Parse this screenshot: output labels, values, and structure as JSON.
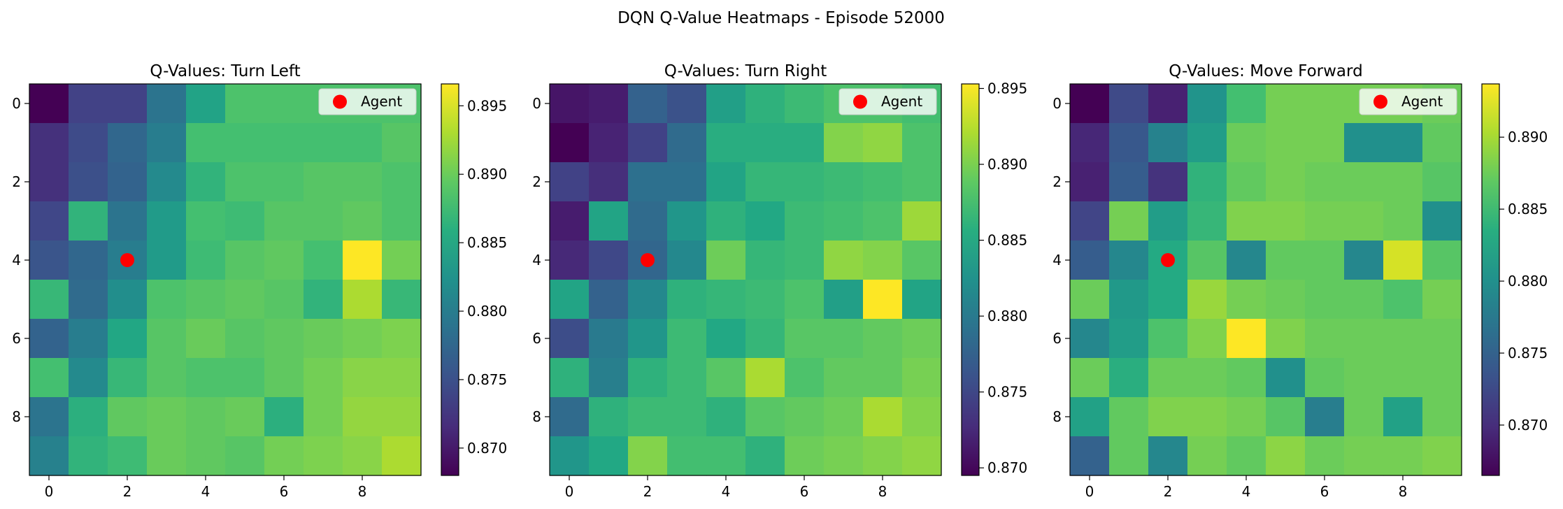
{
  "suptitle": "DQN Q-Value Heatmaps - Episode 52000",
  "colormap": "viridis",
  "agent_color": "#ff0000",
  "legend_label": "Agent",
  "chart_data": [
    {
      "type": "heatmap",
      "title": "Q-Values: Turn Left",
      "x_ticks": [
        "0",
        "2",
        "4",
        "6",
        "8"
      ],
      "y_ticks": [
        "0",
        "2",
        "4",
        "6",
        "8"
      ],
      "colorbar_ticks": [
        "0.870",
        "0.875",
        "0.880",
        "0.885",
        "0.890",
        "0.895"
      ],
      "vmin": 0.868,
      "vmax": 0.8966,
      "agent": {
        "x": 2,
        "y": 4
      },
      "values": [
        [
          0.868,
          0.8735,
          0.8735,
          0.879,
          0.8845,
          0.8885,
          0.8885,
          0.8885,
          0.8885,
          0.8885
        ],
        [
          0.872,
          0.8745,
          0.8775,
          0.88,
          0.888,
          0.888,
          0.888,
          0.888,
          0.888,
          0.889
        ],
        [
          0.872,
          0.875,
          0.877,
          0.8815,
          0.8865,
          0.8885,
          0.8885,
          0.889,
          0.889,
          0.8885
        ],
        [
          0.874,
          0.8865,
          0.879,
          0.8835,
          0.888,
          0.8875,
          0.889,
          0.889,
          0.8895,
          0.8885
        ],
        [
          0.8755,
          0.8775,
          0.88,
          0.8835,
          0.8875,
          0.889,
          0.8895,
          0.888,
          0.8966,
          0.8905
        ],
        [
          0.887,
          0.878,
          0.882,
          0.8885,
          0.889,
          0.8895,
          0.889,
          0.8865,
          0.893,
          0.887
        ],
        [
          0.877,
          0.88,
          0.885,
          0.889,
          0.89,
          0.889,
          0.8895,
          0.89,
          0.8905,
          0.891
        ],
        [
          0.888,
          0.8815,
          0.887,
          0.889,
          0.8885,
          0.8885,
          0.8895,
          0.8905,
          0.8915,
          0.8915
        ],
        [
          0.879,
          0.886,
          0.8895,
          0.89,
          0.8895,
          0.89,
          0.886,
          0.8905,
          0.892,
          0.892
        ],
        [
          0.8805,
          0.8865,
          0.8875,
          0.89,
          0.8895,
          0.889,
          0.8905,
          0.891,
          0.8915,
          0.893
        ]
      ]
    },
    {
      "type": "heatmap",
      "title": "Q-Values: Turn Right",
      "x_ticks": [
        "0",
        "2",
        "4",
        "6",
        "8"
      ],
      "y_ticks": [
        "0",
        "2",
        "4",
        "6",
        "8"
      ],
      "colorbar_ticks": [
        "0.870",
        "0.875",
        "0.880",
        "0.885",
        "0.890",
        "0.895"
      ],
      "vmin": 0.8695,
      "vmax": 0.8953,
      "agent": {
        "x": 2,
        "y": 4
      },
      "values": [
        [
          0.871,
          0.8715,
          0.8775,
          0.876,
          0.884,
          0.886,
          0.887,
          0.888,
          0.888,
          0.8875
        ],
        [
          0.8695,
          0.872,
          0.8745,
          0.8785,
          0.8855,
          0.8855,
          0.8855,
          0.8905,
          0.891,
          0.888
        ],
        [
          0.8745,
          0.873,
          0.879,
          0.879,
          0.8845,
          0.8865,
          0.8865,
          0.887,
          0.8875,
          0.888
        ],
        [
          0.8715,
          0.8845,
          0.8785,
          0.883,
          0.886,
          0.885,
          0.887,
          0.8875,
          0.888,
          0.8915
        ],
        [
          0.8725,
          0.875,
          0.878,
          0.8815,
          0.8895,
          0.8865,
          0.887,
          0.891,
          0.8905,
          0.8885
        ],
        [
          0.8845,
          0.8775,
          0.8815,
          0.886,
          0.8865,
          0.887,
          0.888,
          0.884,
          0.8953,
          0.8845
        ],
        [
          0.8755,
          0.88,
          0.883,
          0.887,
          0.885,
          0.8865,
          0.8885,
          0.8885,
          0.889,
          0.8895
        ],
        [
          0.886,
          0.8805,
          0.886,
          0.887,
          0.8885,
          0.892,
          0.888,
          0.889,
          0.889,
          0.89
        ],
        [
          0.8785,
          0.886,
          0.887,
          0.887,
          0.886,
          0.8885,
          0.889,
          0.8895,
          0.892,
          0.8905
        ],
        [
          0.883,
          0.885,
          0.8905,
          0.8875,
          0.8875,
          0.886,
          0.8895,
          0.89,
          0.8905,
          0.891
        ]
      ]
    },
    {
      "type": "heatmap",
      "title": "Q-Values: Move Forward",
      "x_ticks": [
        "0",
        "2",
        "4",
        "6",
        "8"
      ],
      "y_ticks": [
        "0",
        "2",
        "4",
        "6",
        "8"
      ],
      "colorbar_ticks": [
        "0.870",
        "0.875",
        "0.880",
        "0.885",
        "0.890"
      ],
      "vmin": 0.8665,
      "vmax": 0.8937,
      "agent": {
        "x": 2,
        "y": 4
      },
      "values": [
        [
          0.8665,
          0.8725,
          0.869,
          0.8805,
          0.8855,
          0.888,
          0.888,
          0.888,
          0.888,
          0.8875
        ],
        [
          0.8695,
          0.874,
          0.8785,
          0.8815,
          0.8875,
          0.888,
          0.888,
          0.88,
          0.88,
          0.887
        ],
        [
          0.869,
          0.8745,
          0.8705,
          0.884,
          0.887,
          0.888,
          0.8875,
          0.8875,
          0.8875,
          0.8865
        ],
        [
          0.872,
          0.888,
          0.8815,
          0.8845,
          0.8885,
          0.8885,
          0.888,
          0.888,
          0.8875,
          0.88
        ],
        [
          0.8745,
          0.879,
          0.883,
          0.8865,
          0.879,
          0.887,
          0.887,
          0.879,
          0.892,
          0.8865
        ],
        [
          0.8875,
          0.881,
          0.883,
          0.8895,
          0.888,
          0.8875,
          0.887,
          0.887,
          0.886,
          0.888
        ],
        [
          0.879,
          0.8815,
          0.886,
          0.8885,
          0.8937,
          0.8885,
          0.8875,
          0.8875,
          0.8875,
          0.8875
        ],
        [
          0.8875,
          0.8835,
          0.8875,
          0.8875,
          0.887,
          0.88,
          0.887,
          0.8875,
          0.8875,
          0.8875
        ],
        [
          0.882,
          0.887,
          0.8885,
          0.8885,
          0.888,
          0.8865,
          0.878,
          0.8875,
          0.882,
          0.8875
        ],
        [
          0.875,
          0.887,
          0.879,
          0.888,
          0.887,
          0.889,
          0.8875,
          0.888,
          0.888,
          0.8885
        ]
      ]
    }
  ]
}
